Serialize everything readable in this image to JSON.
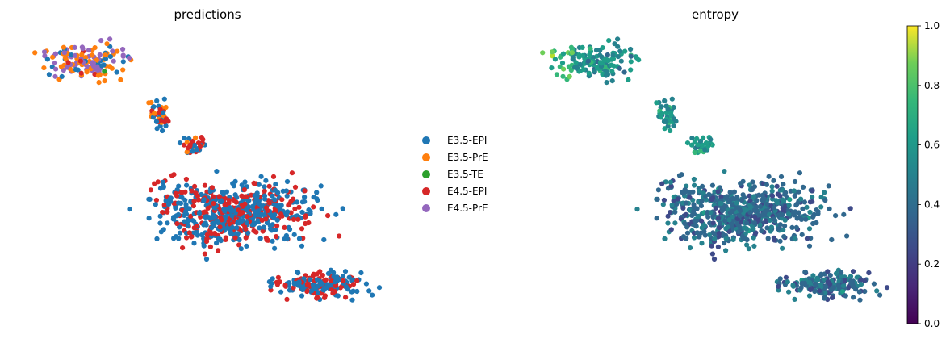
{
  "chart_data": [
    {
      "type": "scatter",
      "title": "predictions",
      "color_by": "category",
      "legend_position": "right",
      "categories": [
        {
          "name": "E3.5-EPI",
          "color": "#1f77b4"
        },
        {
          "name": "E3.5-PrE",
          "color": "#ff7f0e"
        },
        {
          "name": "E3.5-TE",
          "color": "#2ca02c"
        },
        {
          "name": "E4.5-EPI",
          "color": "#d62728"
        },
        {
          "name": "E4.5-PrE",
          "color": "#9467bd"
        }
      ],
      "regions": [
        {
          "label": "upper-left arm",
          "x_range": [
            0.02,
            0.42
          ],
          "y_range": [
            0.02,
            0.22
          ],
          "mix": {
            "E4.5-PrE": 0.42,
            "E3.5-PrE": 0.36,
            "E3.5-EPI": 0.14,
            "E3.5-TE": 0.03,
            "E4.5-EPI": 0.05
          }
        },
        {
          "label": "bridge",
          "x_range": [
            0.35,
            0.58
          ],
          "y_range": [
            0.22,
            0.42
          ],
          "mix": {
            "E3.5-PrE": 0.35,
            "E4.5-EPI": 0.35,
            "E3.5-EPI": 0.3
          }
        },
        {
          "label": "main body",
          "x_range": [
            0.18,
            0.97
          ],
          "y_range": [
            0.42,
            0.82
          ],
          "mix": {
            "E3.5-EPI": 0.62,
            "E4.5-EPI": 0.38
          }
        },
        {
          "label": "lower-right lobe",
          "x_range": [
            0.55,
            1.0
          ],
          "y_range": [
            0.78,
            1.0
          ],
          "mix": {
            "E3.5-EPI": 0.55,
            "E4.5-EPI": 0.45
          }
        }
      ],
      "x_axis": "none",
      "y_axis": "none",
      "grid": false
    },
    {
      "type": "scatter",
      "title": "entropy",
      "color_by": "continuous",
      "colormap": "viridis",
      "colorbar": {
        "min": 0.0,
        "max": 1.0,
        "ticks": [
          "0.0",
          "0.2",
          "0.4",
          "0.6",
          "0.8",
          "1.0"
        ]
      },
      "regions": [
        {
          "label": "upper-left arm",
          "entropy_mean": 0.5
        },
        {
          "label": "bridge",
          "entropy_mean": 0.52
        },
        {
          "label": "main body",
          "entropy_mean": 0.35
        },
        {
          "label": "lower-right lobe",
          "entropy_mean": 0.35
        }
      ],
      "x_axis": "none",
      "y_axis": "none",
      "grid": false
    }
  ]
}
